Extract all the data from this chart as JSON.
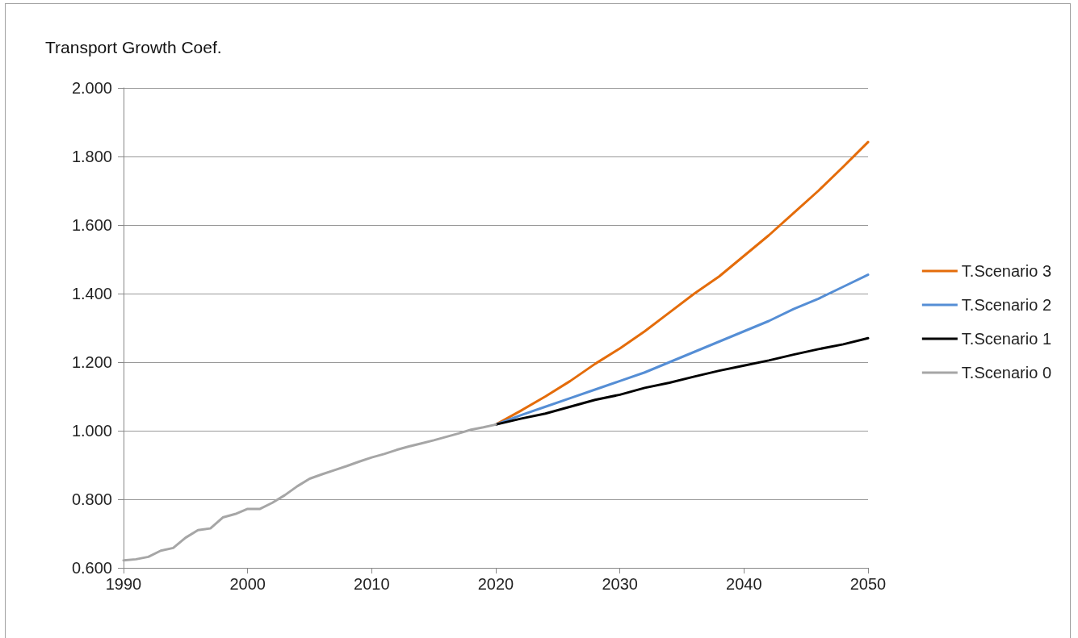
{
  "chart_data": {
    "type": "line",
    "title": "Transport Growth Coef.",
    "xlim": [
      1990,
      2050
    ],
    "xticks": [
      1990,
      2000,
      2010,
      2020,
      2030,
      2040,
      2050
    ],
    "ylim": [
      0.6,
      2.0
    ],
    "yticks": [
      {
        "value": 0.6,
        "label": "0.600"
      },
      {
        "value": 0.8,
        "label": "0.800"
      },
      {
        "value": 1.0,
        "label": "1.000"
      },
      {
        "value": 1.2,
        "label": "1.200"
      },
      {
        "value": 1.4,
        "label": "1.400"
      },
      {
        "value": 1.6,
        "label": "1.600"
      },
      {
        "value": 1.8,
        "label": "1.800"
      },
      {
        "value": 2.0,
        "label": "2.000"
      }
    ],
    "grid": "y",
    "legend": "right",
    "marker": "none",
    "line_style": "solid",
    "series": [
      {
        "name": "T.Scenario 3",
        "color": "#e46c0a",
        "x": [
          2020,
          2022,
          2024,
          2026,
          2028,
          2030,
          2032,
          2034,
          2036,
          2038,
          2040,
          2042,
          2044,
          2046,
          2048,
          2050
        ],
        "values": [
          1.018,
          1.058,
          1.1,
          1.145,
          1.195,
          1.24,
          1.29,
          1.345,
          1.4,
          1.45,
          1.51,
          1.57,
          1.635,
          1.7,
          1.77,
          1.842
        ]
      },
      {
        "name": "T.Scenario 2",
        "color": "#558ed5",
        "x": [
          2020,
          2022,
          2024,
          2026,
          2028,
          2030,
          2032,
          2034,
          2036,
          2038,
          2040,
          2042,
          2044,
          2046,
          2048,
          2050
        ],
        "values": [
          1.018,
          1.045,
          1.07,
          1.095,
          1.12,
          1.145,
          1.17,
          1.2,
          1.23,
          1.26,
          1.29,
          1.32,
          1.355,
          1.385,
          1.42,
          1.455
        ]
      },
      {
        "name": "T.Scenario 1",
        "color": "#000000",
        "x": [
          2020,
          2022,
          2024,
          2026,
          2028,
          2030,
          2032,
          2034,
          2036,
          2038,
          2040,
          2042,
          2044,
          2046,
          2048,
          2050
        ],
        "values": [
          1.018,
          1.035,
          1.05,
          1.07,
          1.09,
          1.105,
          1.125,
          1.14,
          1.158,
          1.175,
          1.19,
          1.205,
          1.222,
          1.238,
          1.252,
          1.27
        ]
      },
      {
        "name": "T.Scenario 0",
        "color": "#a6a6a6",
        "x": [
          1990,
          1991,
          1992,
          1993,
          1994,
          1995,
          1996,
          1997,
          1998,
          1999,
          2000,
          2001,
          2002,
          2003,
          2004,
          2005,
          2006,
          2007,
          2008,
          2009,
          2010,
          2011,
          2012,
          2013,
          2014,
          2015,
          2016,
          2017,
          2018,
          2019,
          2020
        ],
        "values": [
          0.622,
          0.625,
          0.632,
          0.65,
          0.658,
          0.688,
          0.71,
          0.715,
          0.747,
          0.757,
          0.772,
          0.772,
          0.79,
          0.812,
          0.838,
          0.86,
          0.873,
          0.885,
          0.897,
          0.91,
          0.922,
          0.932,
          0.944,
          0.954,
          0.963,
          0.972,
          0.982,
          0.992,
          1.003,
          1.01,
          1.018
        ]
      }
    ]
  }
}
